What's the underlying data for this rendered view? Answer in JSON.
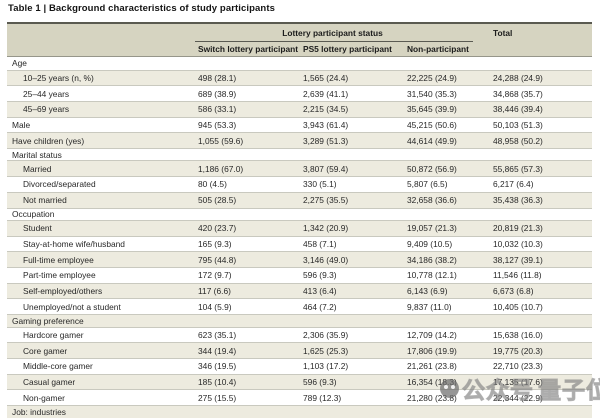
{
  "title": "Table 1 | Background characteristics of study participants",
  "header": {
    "group_label": "Lottery participant status",
    "columns": [
      "Switch lottery participant",
      "PS5 lottery participant",
      "Non-participant"
    ],
    "total_label": "Total"
  },
  "table": {
    "rows": [
      {
        "type": "section",
        "indent": false,
        "shaded": false,
        "label": "Age",
        "values": []
      },
      {
        "type": "data",
        "indent": true,
        "shaded": true,
        "label": "10–25 years (n, %)",
        "values": [
          "498 (28.1)",
          "1,565 (24.4)",
          "22,225 (24.9)",
          "24,288 (24.9)"
        ]
      },
      {
        "type": "data",
        "indent": true,
        "shaded": false,
        "label": "25–44 years",
        "values": [
          "689 (38.9)",
          "2,639 (41.1)",
          "31,540 (35.3)",
          "34,868 (35.7)"
        ]
      },
      {
        "type": "data",
        "indent": true,
        "shaded": true,
        "label": "45–69 years",
        "values": [
          "586 (33.1)",
          "2,215 (34.5)",
          "35,645 (39.9)",
          "38,446 (39.4)"
        ]
      },
      {
        "type": "data",
        "indent": false,
        "shaded": false,
        "label": "Male",
        "values": [
          "945 (53.3)",
          "3,943 (61.4)",
          "45,215 (50.6)",
          "50,103 (51.3)"
        ]
      },
      {
        "type": "data",
        "indent": false,
        "shaded": true,
        "label": "Have children (yes)",
        "values": [
          "1,055 (59.6)",
          "3,289 (51.3)",
          "44,614 (49.9)",
          "48,958 (50.2)"
        ]
      },
      {
        "type": "section",
        "indent": false,
        "shaded": false,
        "label": "Marital status",
        "values": []
      },
      {
        "type": "data",
        "indent": true,
        "shaded": true,
        "label": "Married",
        "values": [
          "1,186 (67.0)",
          "3,807 (59.4)",
          "50,872 (56.9)",
          "55,865 (57.3)"
        ]
      },
      {
        "type": "data",
        "indent": true,
        "shaded": false,
        "label": "Divorced/separated",
        "values": [
          "80 (4.5)",
          "330 (5.1)",
          "5,807 (6.5)",
          "6,217 (6.4)"
        ]
      },
      {
        "type": "data",
        "indent": true,
        "shaded": true,
        "label": "Not married",
        "values": [
          "505 (28.5)",
          "2,275 (35.5)",
          "32,658 (36.6)",
          "35,438 (36.3)"
        ]
      },
      {
        "type": "section",
        "indent": false,
        "shaded": false,
        "label": "Occupation",
        "values": []
      },
      {
        "type": "data",
        "indent": true,
        "shaded": true,
        "label": "Student",
        "values": [
          "420 (23.7)",
          "1,342 (20.9)",
          "19,057 (21.3)",
          "20,819 (21.3)"
        ]
      },
      {
        "type": "data",
        "indent": true,
        "shaded": false,
        "label": "Stay-at-home wife/husband",
        "values": [
          "165 (9.3)",
          "458 (7.1)",
          "9,409 (10.5)",
          "10,032 (10.3)"
        ]
      },
      {
        "type": "data",
        "indent": true,
        "shaded": true,
        "label": "Full-time employee",
        "values": [
          "795 (44.8)",
          "3,146 (49.0)",
          "34,186 (38.2)",
          "38,127 (39.1)"
        ]
      },
      {
        "type": "data",
        "indent": true,
        "shaded": false,
        "label": "Part-time employee",
        "values": [
          "172 (9.7)",
          "596 (9.3)",
          "10,778 (12.1)",
          "11,546 (11.8)"
        ]
      },
      {
        "type": "data",
        "indent": true,
        "shaded": true,
        "label": "Self-employed/others",
        "values": [
          "117 (6.6)",
          "413 (6.4)",
          "6,143 (6.9)",
          "6,673 (6.8)"
        ]
      },
      {
        "type": "data",
        "indent": true,
        "shaded": false,
        "label": "Unemployed/not a student",
        "values": [
          "104 (5.9)",
          "464 (7.2)",
          "9,837 (11.0)",
          "10,405 (10.7)"
        ]
      },
      {
        "type": "section",
        "indent": false,
        "shaded": true,
        "label": "Gaming preference",
        "values": []
      },
      {
        "type": "data",
        "indent": true,
        "shaded": false,
        "label": "Hardcore gamer",
        "values": [
          "623 (35.1)",
          "2,306 (35.9)",
          "12,709 (14.2)",
          "15,638 (16.0)"
        ]
      },
      {
        "type": "data",
        "indent": true,
        "shaded": true,
        "label": "Core gamer",
        "values": [
          "344 (19.4)",
          "1,625 (25.3)",
          "17,806 (19.9)",
          "19,775 (20.3)"
        ]
      },
      {
        "type": "data",
        "indent": true,
        "shaded": false,
        "label": "Middle-core gamer",
        "values": [
          "346 (19.5)",
          "1,103 (17.2)",
          "21,261 (23.8)",
          "22,710 (23.3)"
        ]
      },
      {
        "type": "data",
        "indent": true,
        "shaded": true,
        "label": "Casual gamer",
        "values": [
          "185 (10.4)",
          "596 (9.3)",
          "16,354 (18.3)",
          "17,135 (17.6)"
        ]
      },
      {
        "type": "data",
        "indent": true,
        "shaded": false,
        "label": "Non-gamer",
        "values": [
          "275 (15.5)",
          "789 (12.3)",
          "21,280 (23.8)",
          "22,344 (22.9)"
        ]
      },
      {
        "type": "section",
        "indent": false,
        "shaded": true,
        "label": "Job: industries",
        "values": []
      }
    ]
  },
  "watermark": {
    "icon": "qbitai-logo-icon",
    "text1": "公众号",
    "text2": "量子位"
  },
  "colors": {
    "header_band": "#d6d4c1",
    "row_shade": "#edebdf",
    "top_border": "#5a5a50",
    "row_divider": "#c9c9bf",
    "watermark_gray": "#8a8a8a"
  }
}
